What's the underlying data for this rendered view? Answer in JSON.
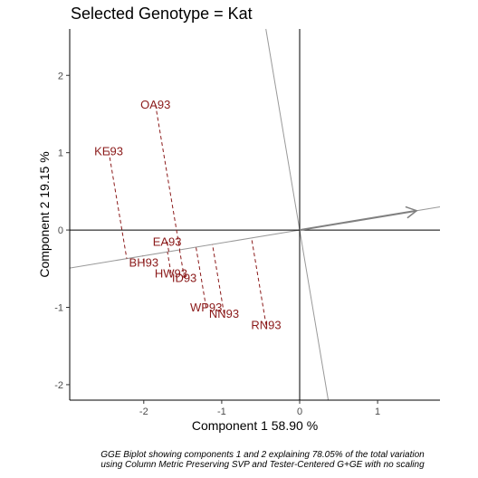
{
  "title": "Selected Genotype = Kat",
  "caption": {
    "line1": "GGE Biplot showing components 1 and 2 explaining 78.05% of the total variation",
    "line2": "using Column Metric Preserving SVP and Tester-Centered G+GE with no scaling"
  },
  "colors": {
    "points": "#8b1a1a",
    "guide_lines": "#999999",
    "arrow": "#808080",
    "axes": "#000000"
  },
  "chart_data": {
    "type": "scatter",
    "xlabel": "Component 1 58.90 %",
    "ylabel": "Component 2 19.15 %",
    "xlim": [
      -2.95,
      1.8
    ],
    "ylim": [
      -2.2,
      2.6
    ],
    "xticks": [
      -2,
      -1,
      0,
      1
    ],
    "yticks": [
      -2,
      -1,
      0,
      1,
      2
    ],
    "grid": false,
    "points": [
      {
        "label": "OA93",
        "x": -1.85,
        "y": 1.62
      },
      {
        "label": "KE93",
        "x": -2.45,
        "y": 1.02
      },
      {
        "label": "EA93",
        "x": -1.7,
        "y": -0.15
      },
      {
        "label": "BH93",
        "x": -2.0,
        "y": -0.42
      },
      {
        "label": "HW93",
        "x": -1.65,
        "y": -0.56
      },
      {
        "label": "ID93",
        "x": -1.48,
        "y": -0.62
      },
      {
        "label": "WP93",
        "x": -1.2,
        "y": -1.0
      },
      {
        "label": "NN93",
        "x": -0.97,
        "y": -1.08
      },
      {
        "label": "RN93",
        "x": -0.43,
        "y": -1.23
      }
    ],
    "selected_genotype": "Kat",
    "selected_vector": {
      "x": 1.5,
      "y": 0.25
    }
  }
}
